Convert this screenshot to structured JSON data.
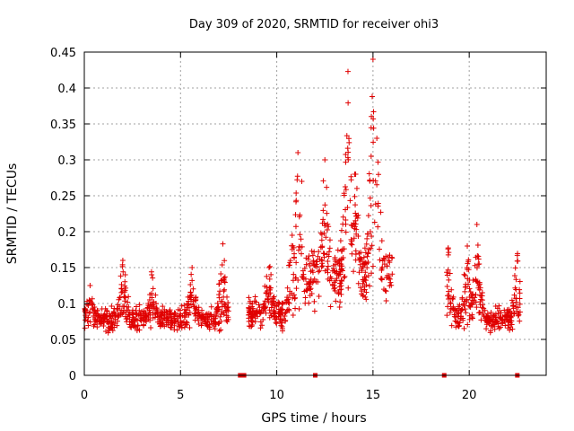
{
  "chart_data": {
    "type": "scatter",
    "title": "Day 309 of 2020, SRMTID for receiver ohi3",
    "xlabel": "GPS time / hours",
    "ylabel": "SRMTID / TECUs",
    "xlim": [
      0,
      24
    ],
    "ylim": [
      0,
      0.45
    ],
    "grid": true,
    "marker": "+",
    "color": "#e00000",
    "x_ticks": [
      0,
      5,
      10,
      15,
      20
    ],
    "x_tick_labels": [
      "0",
      "5",
      "10",
      "15",
      "20"
    ],
    "y_ticks": [
      0,
      0.05,
      0.1,
      0.15,
      0.2,
      0.25,
      0.3,
      0.35,
      0.4,
      0.45
    ],
    "y_tick_labels": [
      "0",
      "0.05",
      "0.1",
      "0.15",
      "0.2",
      "0.25",
      "0.3",
      "0.35",
      "0.4",
      "0.45"
    ],
    "gap_markers_x": [
      8.1,
      8.3,
      12.0,
      18.7,
      22.5
    ],
    "segments": [
      {
        "x_start": 0.0,
        "x_end": 7.5,
        "base": 0.078,
        "spread": 0.028,
        "peaks": [
          {
            "x": 0.3,
            "y": 0.125
          },
          {
            "x": 2.0,
            "y": 0.16
          },
          {
            "x": 3.5,
            "y": 0.14
          },
          {
            "x": 5.6,
            "y": 0.15
          },
          {
            "x": 7.2,
            "y": 0.183
          }
        ]
      },
      {
        "x_start": 8.5,
        "x_end": 11.5,
        "base": 0.085,
        "spread": 0.035,
        "peaks": [
          {
            "x": 9.6,
            "y": 0.15
          },
          {
            "x": 10.8,
            "y": 0.195
          },
          {
            "x": 11.1,
            "y": 0.31
          },
          {
            "x": 11.3,
            "y": 0.27
          }
        ]
      },
      {
        "x_start": 11.5,
        "x_end": 16.0,
        "base": 0.14,
        "spread": 0.075,
        "peaks": [
          {
            "x": 12.5,
            "y": 0.3
          },
          {
            "x": 13.7,
            "y": 0.423
          },
          {
            "x": 14.1,
            "y": 0.28
          },
          {
            "x": 15.0,
            "y": 0.44
          },
          {
            "x": 15.2,
            "y": 0.33
          }
        ]
      },
      {
        "x_start": 18.8,
        "x_end": 22.7,
        "base": 0.08,
        "spread": 0.03,
        "peaks": [
          {
            "x": 18.9,
            "y": 0.176
          },
          {
            "x": 19.9,
            "y": 0.18
          },
          {
            "x": 20.4,
            "y": 0.21
          },
          {
            "x": 22.5,
            "y": 0.167
          }
        ]
      }
    ]
  }
}
